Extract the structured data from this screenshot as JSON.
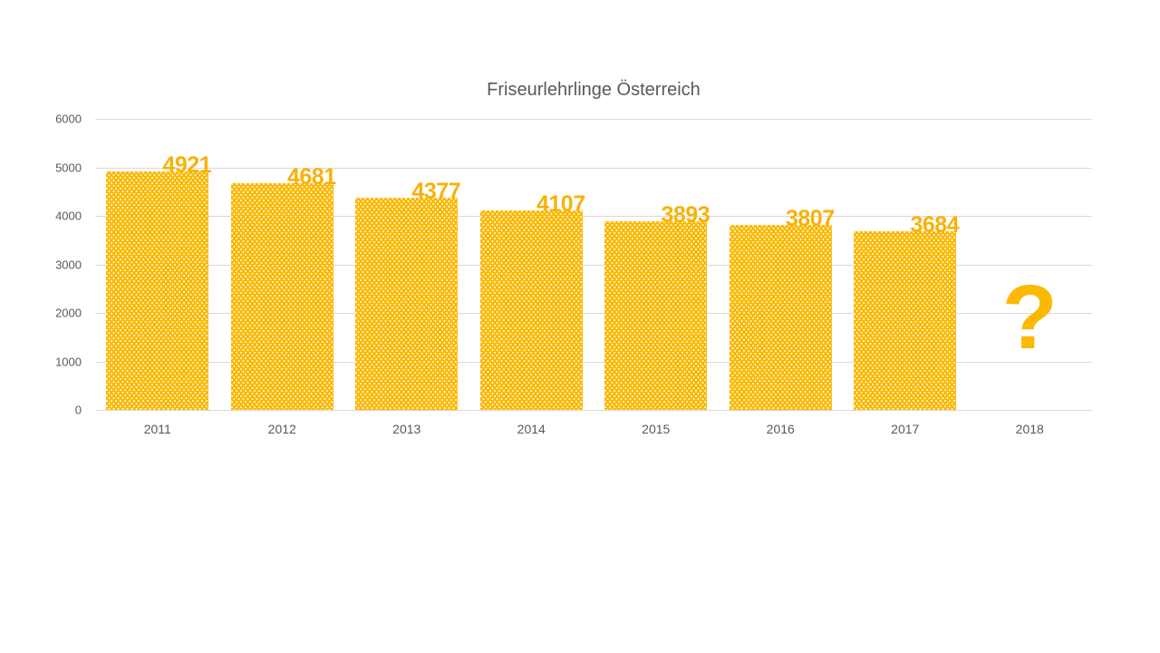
{
  "chart_data": {
    "type": "bar",
    "title": "Friseurlehrlinge Österreich",
    "categories": [
      "2011",
      "2012",
      "2013",
      "2014",
      "2015",
      "2016",
      "2017",
      "2018"
    ],
    "values": [
      4921,
      4681,
      4377,
      4107,
      3893,
      3807,
      3684,
      null
    ],
    "data_labels": [
      "4921",
      "4681",
      "4377",
      "4107",
      "3893",
      "3807",
      "3684"
    ],
    "missing_value_marker": "?",
    "xlabel": "",
    "ylabel": "",
    "ylim": [
      0,
      6000
    ],
    "ytick_step": 1000,
    "yticks": [
      "0",
      "1000",
      "2000",
      "3000",
      "4000",
      "5000",
      "6000"
    ],
    "grid": "horizontal",
    "legend_position": "none",
    "colors": {
      "bar_fill": "#fbb904",
      "bar_pattern_dots": "#ffffff",
      "data_label_text": "#f8b207",
      "title_text": "#595959",
      "axis_text": "#595959",
      "gridline": "#d9d9d9"
    }
  }
}
